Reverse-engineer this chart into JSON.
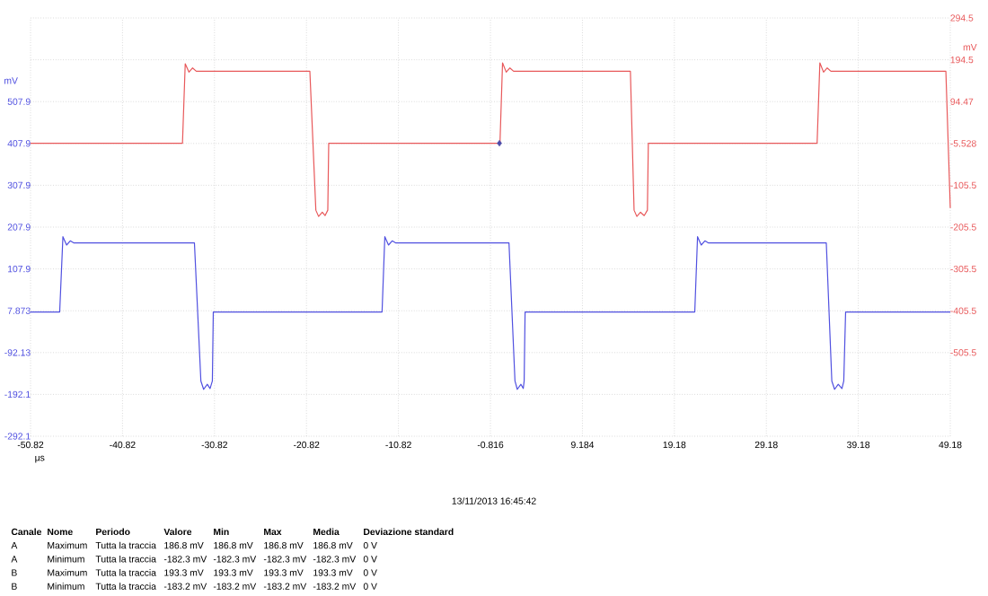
{
  "chart_data": {
    "type": "line",
    "xlabel": "μs",
    "ylabel": "mV",
    "y2label": "mV",
    "xlim": [
      -50.82,
      49.18
    ],
    "xticks": [
      -50.82,
      -40.82,
      -30.82,
      -20.82,
      -10.82,
      -0.816,
      9.184,
      19.18,
      29.18,
      39.18,
      49.18
    ],
    "ylim": [
      -292.1,
      707.9
    ],
    "yticks": [
      -292.1,
      -192.1,
      -92.13,
      7.873,
      107.9,
      207.9,
      307.9,
      407.9,
      507.9,
      {
        "value": 607.9,
        "label": null
      },
      {
        "value": 707.9,
        "label": null
      }
    ],
    "y2lim": [
      -705.5,
      294.5
    ],
    "y2ticks": [
      -505.5,
      -405.5,
      -305.5,
      -205.5,
      -105.5,
      -5.528,
      94.47,
      194.5,
      294.5
    ],
    "grid": true,
    "series": [
      {
        "color": "#e8585a",
        "axis": "y2",
        "x": [
          -50.82,
          -34.3,
          -34.0,
          -33.6,
          -33.2,
          -32.8,
          -20.45,
          -19.8,
          -19.5,
          -19.1,
          -18.8,
          -18.5,
          -18.4,
          0.22,
          0.5,
          0.9,
          1.3,
          1.7,
          14.4,
          14.8,
          15.1,
          15.5,
          15.9,
          16.25,
          16.35,
          34.7,
          35.0,
          35.4,
          35.8,
          36.2,
          48.7,
          49.18
        ],
        "values": [
          -5,
          -5,
          185,
          165,
          175,
          167,
          167,
          -165,
          -180,
          -170,
          -178,
          -165,
          -5,
          -5,
          187,
          165,
          175,
          167,
          167,
          -165,
          -180,
          -170,
          -178,
          -165,
          -5,
          -5,
          187,
          165,
          175,
          167,
          167,
          -160
        ]
      },
      {
        "color": "#5050e0",
        "axis": "y",
        "x": [
          -50.82,
          -47.65,
          -47.3,
          -46.9,
          -46.5,
          -46.1,
          -33.0,
          -32.3,
          -32.0,
          -31.6,
          -31.3,
          -31.05,
          -30.95,
          -12.6,
          -12.3,
          -11.9,
          -11.5,
          -11.1,
          1.2,
          1.85,
          2.1,
          2.5,
          2.75,
          2.85,
          2.95,
          21.4,
          21.7,
          22.1,
          22.5,
          22.9,
          35.7,
          36.3,
          36.6,
          37.0,
          37.4,
          37.6,
          37.8,
          49.18
        ],
        "values": [
          5,
          5,
          185,
          165,
          175,
          170,
          170,
          -160,
          -180,
          -168,
          -178,
          -160,
          5,
          5,
          185,
          165,
          175,
          170,
          170,
          -160,
          -180,
          -168,
          -178,
          -160,
          5,
          5,
          185,
          165,
          175,
          170,
          170,
          -160,
          -180,
          -168,
          -178,
          -160,
          5,
          5
        ]
      },
      {
        "type": "scatter",
        "marker": "diamond",
        "color": "#4a4aa8",
        "axis": "y2",
        "x": [
          0.16
        ],
        "values": [
          -5
        ]
      }
    ],
    "annotations": [
      "13/11/2013 16:45:42",
      "Canale",
      "Nome",
      "Periodo",
      "Valore",
      "Min",
      "Max",
      "Media",
      "Deviazione standard",
      "A",
      "Maximum",
      "Tutta la traccia",
      "186.8 mV",
      "186.8 mV",
      "186.8 mV",
      "186.8 mV",
      "0 V",
      "A",
      "Minimum",
      "Tutta la traccia",
      "-182.3 mV",
      "-182.3 mV",
      "-182.3 mV",
      "-182.3 mV",
      "0 V",
      "B",
      "Maximum",
      "Tutta la traccia",
      "193.3 mV",
      "193.3 mV",
      "193.3 mV",
      "193.3 mV",
      "0 V",
      "B",
      "Minimum",
      "Tutta la traccia",
      "-183.2 mV",
      "-183.2 mV",
      "-183.2 mV",
      "-183.2 mV",
      "0 V"
    ]
  }
}
